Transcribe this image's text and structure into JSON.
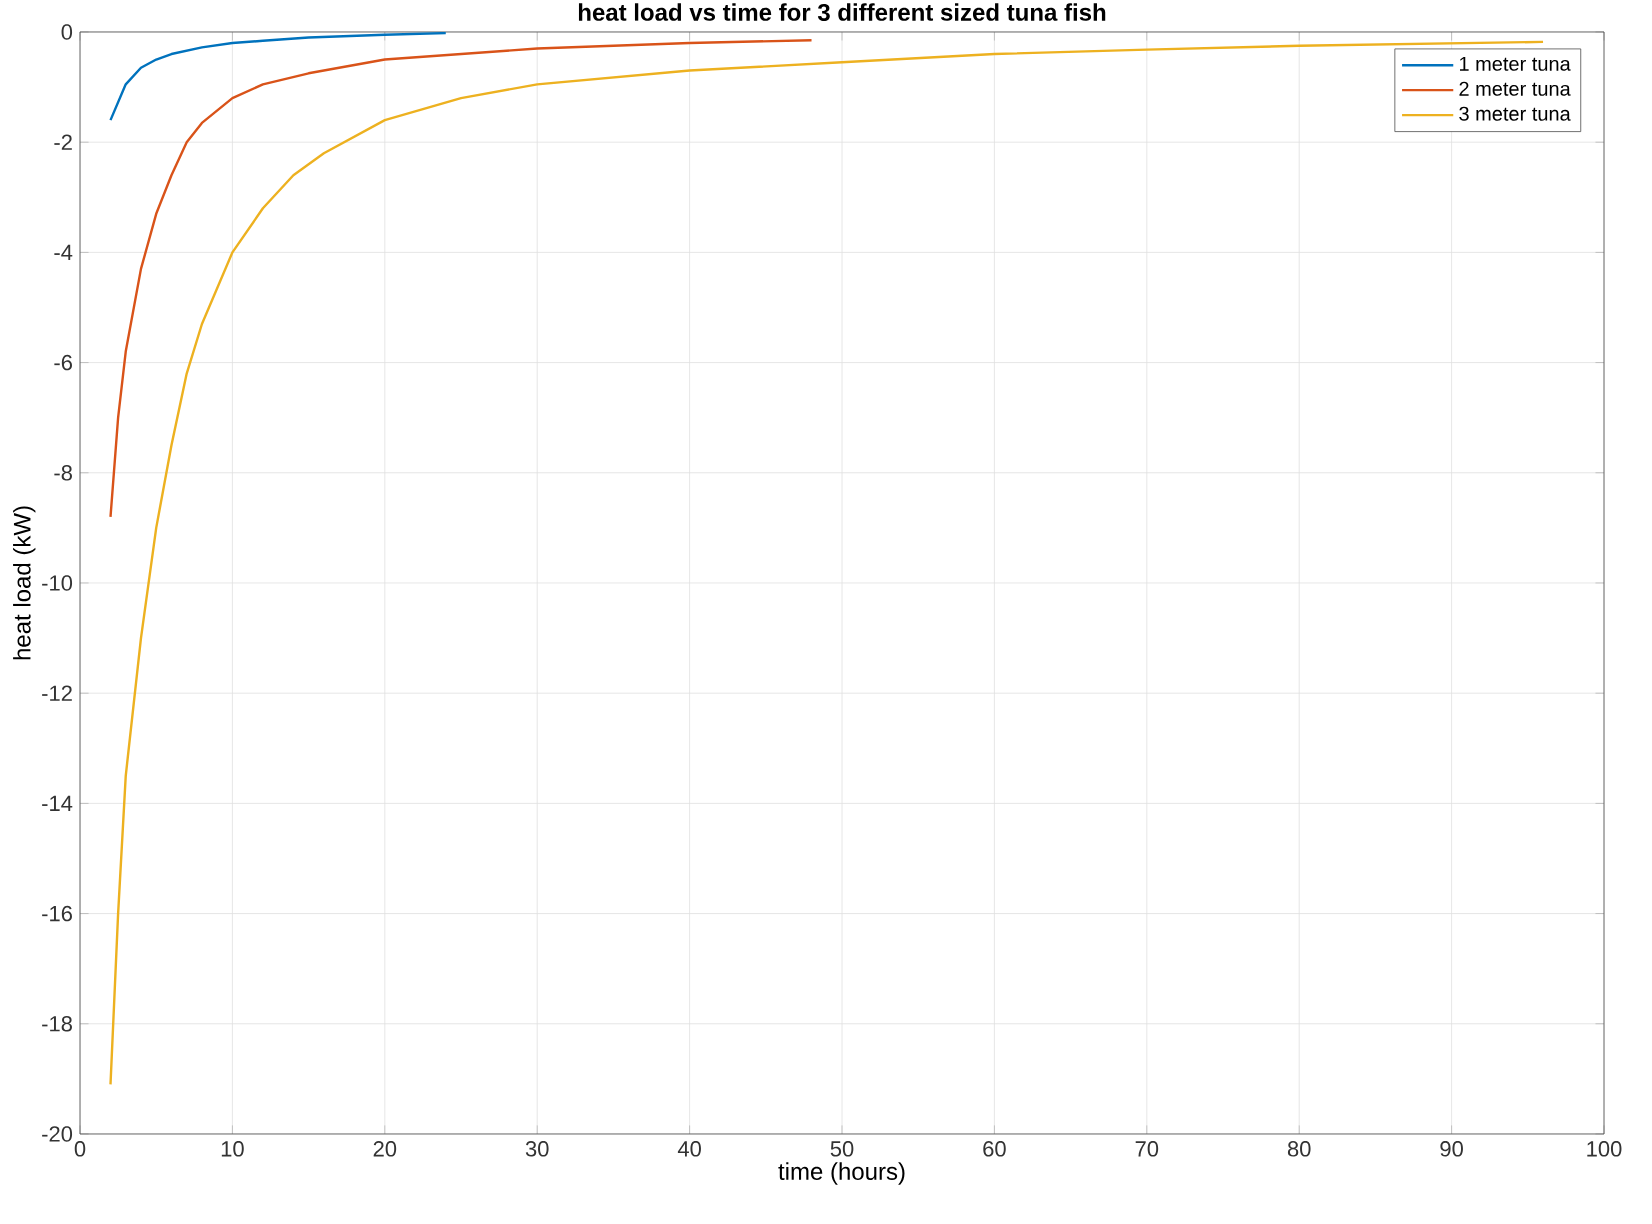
{
  "chart_data": {
    "type": "line",
    "title": "heat load vs time for 3 different sized tuna fish",
    "xlabel": "time (hours)",
    "ylabel": "heat load (kW)",
    "xlim": [
      0,
      100
    ],
    "ylim": [
      -20,
      0
    ],
    "xticks": [
      0,
      10,
      20,
      30,
      40,
      50,
      60,
      70,
      80,
      90,
      100
    ],
    "yticks": [
      -20,
      -18,
      -16,
      -14,
      -12,
      -10,
      -8,
      -6,
      -4,
      -2,
      0
    ],
    "grid": true,
    "legend": "top right",
    "line_style": "solid",
    "marker": "none",
    "series": [
      {
        "name": "1 meter tuna",
        "color": "#0072bd",
        "x": [
          2,
          3,
          4,
          5,
          6,
          8,
          10,
          12,
          15,
          20,
          24
        ],
        "values": [
          -1.6,
          -0.95,
          -0.65,
          -0.5,
          -0.4,
          -0.28,
          -0.2,
          -0.16,
          -0.1,
          -0.05,
          -0.02
        ]
      },
      {
        "name": "2 meter tuna",
        "color": "#d95319",
        "x": [
          2,
          2.5,
          3,
          4,
          5,
          6,
          7,
          8,
          10,
          12,
          15,
          20,
          25,
          30,
          40,
          48
        ],
        "values": [
          -8.8,
          -7,
          -5.8,
          -4.3,
          -3.3,
          -2.6,
          -2.0,
          -1.65,
          -1.2,
          -0.95,
          -0.75,
          -0.5,
          -0.4,
          -0.3,
          -0.2,
          -0.15
        ]
      },
      {
        "name": "3 meter tuna",
        "color": "#edb120",
        "x": [
          2,
          2.5,
          3,
          4,
          5,
          6,
          7,
          8,
          10,
          12,
          14,
          16,
          20,
          25,
          30,
          40,
          50,
          60,
          70,
          80,
          96
        ],
        "values": [
          -19.1,
          -16,
          -13.5,
          -11,
          -9,
          -7.5,
          -6.2,
          -5.3,
          -4.0,
          -3.2,
          -2.6,
          -2.2,
          -1.6,
          -1.2,
          -0.95,
          -0.7,
          -0.55,
          -0.4,
          -0.32,
          -0.25,
          -0.18
        ]
      }
    ]
  }
}
